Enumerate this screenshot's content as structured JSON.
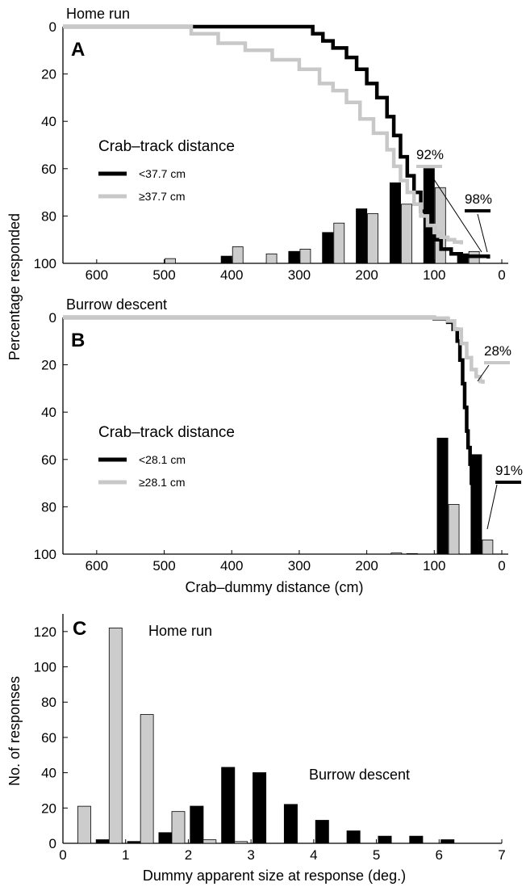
{
  "colors": {
    "black": "#000000",
    "grey": "#c8c8c8",
    "bar_grey": "#cccccc"
  },
  "ylabel_ab": "Percentage responded",
  "chart_data": [
    {
      "panel": "A",
      "type": "line",
      "title": "Home run",
      "xlim": [
        650,
        0
      ],
      "ylim": [
        0,
        100
      ],
      "y_inverted": true,
      "xticks": [
        "600",
        "500",
        "400",
        "300",
        "200",
        "100",
        "0"
      ],
      "yticks": [
        "0",
        "20",
        "40",
        "60",
        "80",
        "100"
      ],
      "legend": {
        "title": "Crab–track distance",
        "items": [
          {
            "label": "<37.7 cm",
            "color": "#000000"
          },
          {
            "label": "≥37.7 cm",
            "color": "#c8c8c8"
          }
        ]
      },
      "series": [
        {
          "name": "<37.7 cm",
          "color": "#000000",
          "x": [
            650,
            415,
            300,
            280,
            265,
            250,
            230,
            215,
            200,
            185,
            170,
            160,
            150,
            140,
            130,
            120,
            110,
            100,
            90,
            75,
            60,
            40,
            20
          ],
          "y": [
            0,
            0,
            0,
            3,
            6,
            9,
            13,
            18,
            24,
            30,
            38,
            46,
            55,
            63,
            70,
            78,
            85,
            90,
            94,
            96,
            97,
            97,
            98
          ]
        },
        {
          "name": "≥37.7 cm",
          "color": "#c8c8c8",
          "x": [
            650,
            470,
            460,
            420,
            380,
            340,
            300,
            270,
            250,
            230,
            210,
            190,
            170,
            160,
            150,
            140,
            130,
            120,
            110,
            100,
            90,
            80,
            70,
            60
          ],
          "y": [
            0,
            0,
            3,
            7,
            10,
            14,
            18,
            24,
            27,
            32,
            39,
            45,
            52,
            59,
            65,
            70,
            75,
            80,
            84,
            87,
            89,
            90,
            91,
            92
          ]
        }
      ],
      "bars": {
        "x": [
          600,
          500,
          400,
          350,
          300,
          250,
          200,
          150,
          100,
          50
        ],
        "black": [
          0,
          0,
          3,
          0,
          5,
          13,
          23,
          34,
          40,
          4
        ],
        "grey": [
          0,
          2,
          7,
          4,
          6,
          17,
          21,
          25,
          32,
          5
        ]
      },
      "annotations": [
        {
          "text": "92%",
          "color": "#c8c8c8"
        },
        {
          "text": "98%",
          "color": "#000000"
        }
      ]
    },
    {
      "panel": "B",
      "type": "line",
      "title": "Burrow descent",
      "xlabel": "Crab–dummy distance (cm)",
      "xlim": [
        650,
        0
      ],
      "ylim": [
        0,
        100
      ],
      "y_inverted": true,
      "xticks": [
        "600",
        "500",
        "400",
        "300",
        "200",
        "100",
        "0"
      ],
      "yticks": [
        "0",
        "20",
        "40",
        "60",
        "80",
        "100"
      ],
      "legend": {
        "title": "Crab–track distance",
        "items": [
          {
            "label": "<28.1 cm",
            "color": "#000000"
          },
          {
            "label": "≥28.1 cm",
            "color": "#c8c8c8"
          }
        ]
      },
      "series": [
        {
          "name": "<28.1 cm",
          "color": "#000000",
          "x": [
            650,
            100,
            80,
            72,
            66,
            62,
            58,
            55,
            52,
            50,
            47,
            45,
            42,
            38,
            33,
            30
          ],
          "y": [
            0,
            0.5,
            2,
            5,
            10,
            18,
            28,
            38,
            48,
            55,
            62,
            70,
            78,
            86,
            91,
            91
          ]
        },
        {
          "name": "≥28.1 cm",
          "color": "#c8c8c8",
          "x": [
            650,
            100,
            80,
            70,
            60,
            52,
            45,
            38,
            32,
            28
          ],
          "y": [
            0,
            0.3,
            1.5,
            5,
            11,
            17,
            22,
            25,
            27,
            28
          ]
        }
      ],
      "bars": {
        "x": [
          200,
          150,
          100,
          50
        ],
        "black": [
          0,
          0,
          0,
          0
        ],
        "grey": [
          0,
          0,
          0,
          0
        ]
      },
      "bar_values": [
        {
          "x": 195,
          "black": 0,
          "grey": 0
        },
        {
          "x": 165,
          "black": 0,
          "grey": 0.5
        },
        {
          "x": 125,
          "black": 0.2,
          "grey": 0
        },
        {
          "x": 80,
          "black": 49,
          "grey": 21
        },
        {
          "x": 30,
          "black": 42,
          "grey": 6
        }
      ],
      "annotations": [
        {
          "text": "28%",
          "color": "#c8c8c8"
        },
        {
          "text": "91%",
          "color": "#000000"
        }
      ]
    },
    {
      "panel": "C",
      "type": "bar",
      "xlabel": "Dummy apparent size at response (deg.)",
      "ylabel": "No. of responses",
      "xlim": [
        0,
        7
      ],
      "ylim": [
        0,
        130
      ],
      "xticks": [
        "0",
        "1",
        "2",
        "3",
        "4",
        "5",
        "6",
        "7"
      ],
      "yticks": [
        "0",
        "20",
        "40",
        "60",
        "80",
        "100",
        "120"
      ],
      "labels": [
        "Home run",
        "Burrow descent"
      ],
      "bins": [
        0.25,
        0.75,
        1.25,
        1.75,
        2.25,
        2.75,
        3.25,
        3.75,
        4.25,
        4.75,
        5.25,
        5.75,
        6.25
      ],
      "series": [
        {
          "name": "Home run",
          "color": "#cccccc",
          "values": [
            21,
            122,
            73,
            18,
            2,
            1,
            0,
            0,
            0,
            0,
            0,
            0,
            0
          ]
        },
        {
          "name": "Burrow descent",
          "color": "#000000",
          "values": [
            0,
            2,
            1,
            6,
            21,
            43,
            40,
            22,
            13,
            7,
            4,
            4,
            2
          ]
        }
      ]
    }
  ]
}
